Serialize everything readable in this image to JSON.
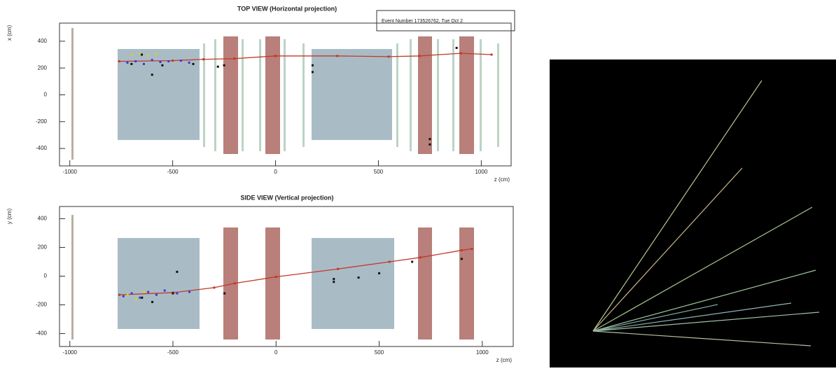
{
  "chart_data": [
    {
      "type": "scatter",
      "title": "TOP VIEW (Horizontal projection)",
      "annotation": "Event Number 173526762, Tue Oct 2",
      "x_label": "z (cm)",
      "y_label": "x (cm)",
      "xlim": [
        -1050,
        1145
      ],
      "ylim": [
        -530,
        535
      ],
      "xticks": [
        -1000,
        -500,
        0,
        500,
        1000
      ],
      "yticks": [
        -400,
        -200,
        0,
        200,
        400
      ],
      "series": [
        {
          "type": "line",
          "color": "#c0392b",
          "x": [
            -760,
            -500,
            -350,
            -200,
            0,
            300,
            550,
            700,
            900,
            1050
          ],
          "values": [
            250,
            255,
            265,
            270,
            290,
            290,
            285,
            290,
            310,
            300
          ]
        },
        {
          "type": "scatter",
          "color": "#111111",
          "x": [
            -700,
            -650,
            -600,
            -550,
            -400,
            -280,
            -250,
            180,
            180,
            750,
            750,
            880
          ],
          "values": [
            230,
            300,
            150,
            220,
            230,
            210,
            220,
            220,
            170,
            -330,
            -370,
            350
          ]
        },
        {
          "type": "scatter",
          "color": "#3b3bd0",
          "x": [
            -720,
            -680,
            -640,
            -600,
            -560,
            -520,
            -460,
            -420
          ],
          "values": [
            240,
            250,
            230,
            260,
            245,
            250,
            255,
            240
          ]
        },
        {
          "type": "scatter",
          "color": "#d8d020",
          "x": [
            -700,
            -660,
            -620,
            -580
          ],
          "values": [
            300,
            310,
            290,
            305
          ]
        }
      ]
    },
    {
      "type": "scatter",
      "title": "SIDE VIEW (Vertical projection)",
      "x_label": "z (cm)",
      "y_label": "y (cm)",
      "xlim": [
        -1050,
        1150
      ],
      "ylim": [
        -490,
        485
      ],
      "xticks": [
        -1000,
        -500,
        0,
        500,
        1000
      ],
      "yticks": [
        -400,
        -200,
        0,
        200,
        400
      ],
      "series": [
        {
          "type": "line",
          "color": "#c0392b",
          "x": [
            -760,
            -500,
            -300,
            -200,
            0,
            300,
            550,
            700,
            900,
            950
          ],
          "values": [
            -130,
            -115,
            -80,
            -50,
            -5,
            50,
            100,
            130,
            180,
            190
          ]
        },
        {
          "type": "scatter",
          "color": "#111111",
          "x": [
            -650,
            -600,
            -500,
            -480,
            -250,
            280,
            280,
            400,
            500,
            660,
            900
          ],
          "values": [
            -150,
            -180,
            -120,
            30,
            -120,
            -20,
            -40,
            -10,
            20,
            100,
            120
          ]
        },
        {
          "type": "scatter",
          "color": "#3b3bd0",
          "x": [
            -740,
            -700,
            -660,
            -620,
            -580,
            -540,
            -480,
            -420
          ],
          "values": [
            -140,
            -120,
            -150,
            -110,
            -130,
            -100,
            -120,
            -110
          ]
        },
        {
          "type": "scatter",
          "color": "#d8d020",
          "x": [
            -720,
            -680,
            -640
          ],
          "values": [
            -130,
            -160,
            -110
          ]
        }
      ]
    }
  ]
}
